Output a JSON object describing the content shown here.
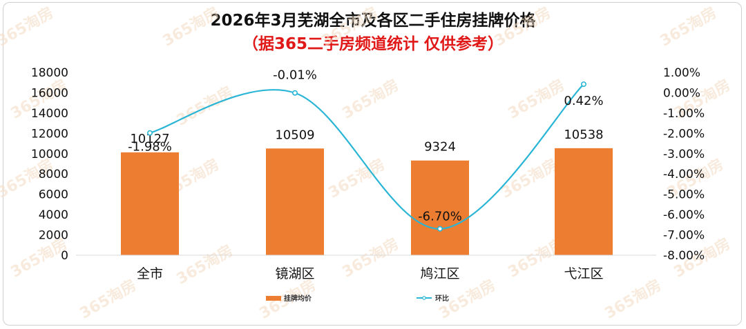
{
  "chart_data": {
    "type": "bar",
    "title": "2026年3月芜湖全市及各区二手住房挂牌价格",
    "subtitle": "（据365二手房频道统计 仅供参考）",
    "categories": [
      "全市",
      "镜湖区",
      "鸠江区",
      "弋江区"
    ],
    "series": [
      {
        "name": "挂牌均价",
        "type": "bar",
        "axis": "left",
        "values": [
          10127,
          10509,
          9324,
          10538
        ],
        "labels": [
          "10127",
          "10509",
          "9324",
          "10538"
        ],
        "color": "#ed7d31"
      },
      {
        "name": "环比",
        "type": "line",
        "axis": "right",
        "values": [
          -1.98,
          -0.01,
          -6.7,
          0.42
        ],
        "labels": [
          "-1.98%",
          "-0.01%",
          "-6.70%",
          "0.42%"
        ],
        "color": "#29b5d6"
      }
    ],
    "y_left": {
      "range": [
        0,
        18000
      ],
      "ticks": [
        "0",
        "2000",
        "4000",
        "6000",
        "8000",
        "10000",
        "12000",
        "14000",
        "16000",
        "18000"
      ]
    },
    "y_right": {
      "range": [
        -8,
        1
      ],
      "ticks": [
        "-8.00%",
        "-7.00%",
        "-6.00%",
        "-5.00%",
        "-4.00%",
        "-3.00%",
        "-2.00%",
        "-1.00%",
        "0.00%",
        "1.00%"
      ]
    },
    "grid": false,
    "legend": "bottom",
    "watermark": "365淘房"
  }
}
